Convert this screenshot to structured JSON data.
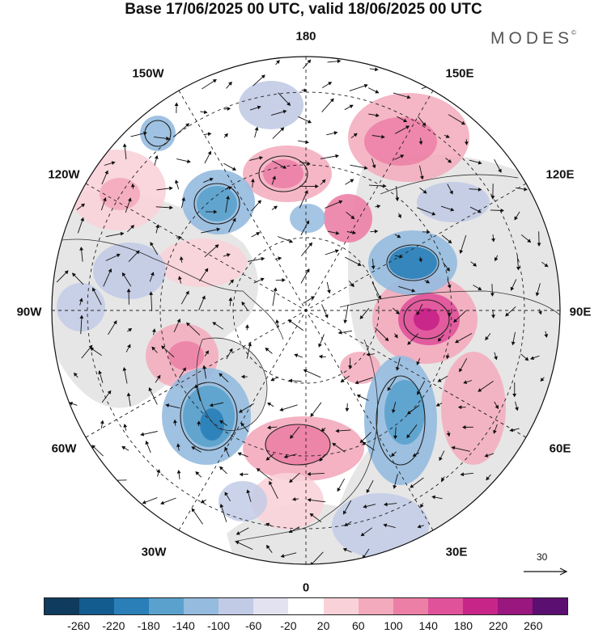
{
  "title": "Base 17/06/2025 00 UTC, valid 18/06/2025 00 UTC",
  "brand": {
    "name": "MODES",
    "mark": "©"
  },
  "map": {
    "projection": "north polar stereographic",
    "longitude_labels": {
      "top": "180",
      "bottom": "0",
      "left": "90W",
      "right": "90E",
      "upper_left": "150W",
      "upper_right": "150E",
      "mid_upper_left": "120W",
      "mid_upper_right": "120E",
      "mid_lower_left": "60W",
      "mid_lower_right": "60E",
      "lower_left": "30W",
      "lower_right": "30E"
    },
    "wind_vectors": "on",
    "coastlines": "on",
    "graticule": "dashed"
  },
  "reference_vector": {
    "label": "30"
  },
  "colorbar": {
    "colors": [
      "#0e3b5e",
      "#135c8f",
      "#2a7fb8",
      "#5aa2cd",
      "#95bbdf",
      "#c2cbe6",
      "#e2e2f1",
      "#ffffff",
      "#f9d2d9",
      "#f3aabc",
      "#ec7fa6",
      "#e0529a",
      "#c82589",
      "#99177e",
      "#5b0f70"
    ],
    "ticks": [
      "-260",
      "-220",
      "-180",
      "-140",
      "-100",
      "-60",
      "-20",
      "20",
      "60",
      "100",
      "140",
      "180",
      "220",
      "260"
    ]
  }
}
